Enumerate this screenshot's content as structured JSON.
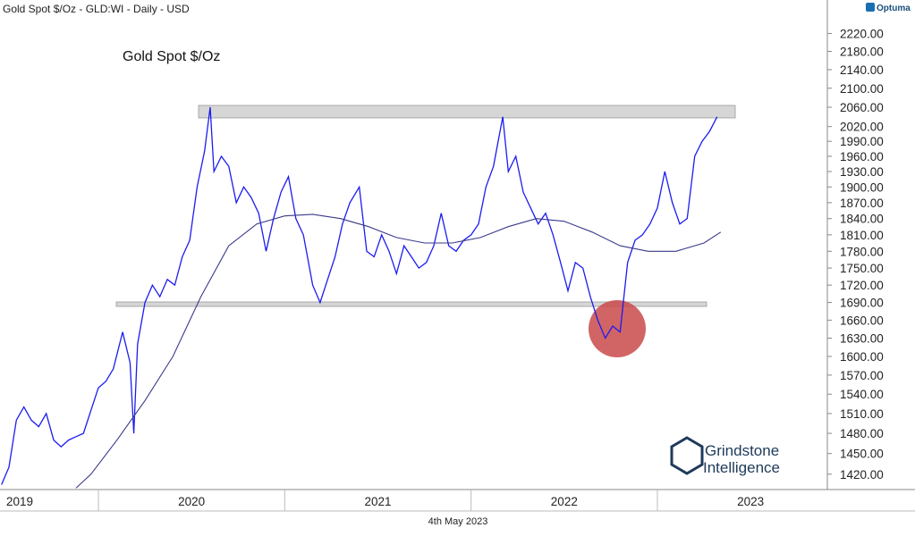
{
  "chart_data": {
    "type": "line",
    "title": "Gold Spot $/Oz - GLD:WI - Daily - USD",
    "annotation": "Gold Spot $/Oz",
    "date_label": "4th May 2023",
    "brand": "Optuma",
    "logo_lines": [
      "Grindstone",
      "Intelligence"
    ],
    "log_scale": true,
    "xlim": [
      2019.472,
      2023.912
    ],
    "ylim": [
      1398,
      2280
    ],
    "xticks": [
      2019,
      2020,
      2021,
      2022,
      2023
    ],
    "yticks": [
      {
        "value": 2220,
        "label": "2220.00"
      },
      {
        "value": 2180,
        "label": "2180.00"
      },
      {
        "value": 2140,
        "label": "2140.00"
      },
      {
        "value": 2100,
        "label": "2100.00"
      },
      {
        "value": 2060,
        "label": "2060.00"
      },
      {
        "value": 2020,
        "label": "2020.00"
      },
      {
        "value": 1990,
        "label": "1990.00"
      },
      {
        "value": 1960,
        "label": "1960.00"
      },
      {
        "value": 1930,
        "label": "1930.00"
      },
      {
        "value": 1900,
        "label": "1900.00"
      },
      {
        "value": 1870,
        "label": "1870.00"
      },
      {
        "value": 1840,
        "label": "1840.00"
      },
      {
        "value": 1810,
        "label": "1810.00"
      },
      {
        "value": 1780,
        "label": "1780.00"
      },
      {
        "value": 1750,
        "label": "1750.00"
      },
      {
        "value": 1720,
        "label": "1720.00"
      },
      {
        "value": 1690,
        "label": "1690.00"
      },
      {
        "value": 1660,
        "label": "1660.00"
      },
      {
        "value": 1630,
        "label": "1630.00"
      },
      {
        "value": 1600,
        "label": "1600.00"
      },
      {
        "value": 1570,
        "label": "1570.00"
      },
      {
        "value": 1540,
        "label": "1540.00"
      },
      {
        "value": 1510,
        "label": "1510.00"
      },
      {
        "value": 1480,
        "label": "1480.00"
      },
      {
        "value": 1450,
        "label": "1450.00"
      },
      {
        "value": 1420,
        "label": "1420.00"
      }
    ],
    "series": [
      {
        "color": "#1c1cf0",
        "x": [
          2019.48,
          2019.52,
          2019.56,
          2019.6,
          2019.64,
          2019.68,
          2019.72,
          2019.76,
          2019.8,
          2019.84,
          2019.88,
          2019.92,
          2019.96,
          2020.0,
          2020.04,
          2020.08,
          2020.13,
          2020.17,
          2020.19,
          2020.21,
          2020.25,
          2020.29,
          2020.33,
          2020.37,
          2020.41,
          2020.45,
          2020.49,
          2020.53,
          2020.57,
          2020.6,
          2020.62,
          2020.66,
          2020.7,
          2020.74,
          2020.78,
          2020.82,
          2020.86,
          2020.9,
          2020.94,
          2020.98,
          2021.02,
          2021.06,
          2021.1,
          2021.15,
          2021.19,
          2021.23,
          2021.27,
          2021.31,
          2021.35,
          2021.4,
          2021.44,
          2021.48,
          2021.52,
          2021.56,
          2021.6,
          2021.64,
          2021.68,
          2021.72,
          2021.76,
          2021.8,
          2021.84,
          2021.88,
          2021.92,
          2021.96,
          2022.0,
          2022.04,
          2022.08,
          2022.12,
          2022.17,
          2022.2,
          2022.24,
          2022.28,
          2022.32,
          2022.36,
          2022.4,
          2022.44,
          2022.48,
          2022.52,
          2022.56,
          2022.6,
          2022.64,
          2022.68,
          2022.72,
          2022.76,
          2022.8,
          2022.84,
          2022.88,
          2022.92,
          2022.96,
          2023.0,
          2023.04,
          2023.08,
          2023.12,
          2023.16,
          2023.2,
          2023.24,
          2023.28,
          2023.32
        ],
        "values": [
          1405,
          1430,
          1500,
          1520,
          1500,
          1490,
          1510,
          1470,
          1460,
          1470,
          1475,
          1480,
          1515,
          1550,
          1560,
          1580,
          1640,
          1590,
          1480,
          1620,
          1690,
          1720,
          1700,
          1730,
          1720,
          1770,
          1800,
          1900,
          1970,
          2060,
          1930,
          1960,
          1940,
          1870,
          1900,
          1880,
          1850,
          1780,
          1840,
          1890,
          1920,
          1840,
          1810,
          1720,
          1690,
          1730,
          1770,
          1830,
          1870,
          1900,
          1780,
          1770,
          1810,
          1780,
          1740,
          1790,
          1770,
          1750,
          1760,
          1790,
          1850,
          1790,
          1780,
          1800,
          1810,
          1830,
          1900,
          1940,
          2040,
          1930,
          1960,
          1890,
          1860,
          1830,
          1850,
          1810,
          1760,
          1710,
          1760,
          1750,
          1700,
          1660,
          1630,
          1650,
          1640,
          1760,
          1800,
          1810,
          1830,
          1860,
          1930,
          1870,
          1830,
          1840,
          1960,
          1990,
          2010,
          2040
        ]
      },
      {
        "color": "#3a3a8c",
        "x": [
          2019.88,
          2019.96,
          2020.1,
          2020.25,
          2020.4,
          2020.55,
          2020.7,
          2020.85,
          2021.0,
          2021.15,
          2021.3,
          2021.45,
          2021.6,
          2021.75,
          2021.9,
          2022.05,
          2022.2,
          2022.35,
          2022.5,
          2022.65,
          2022.8,
          2022.95,
          2023.1,
          2023.25,
          2023.34
        ],
        "values": [
          1400,
          1420,
          1470,
          1530,
          1600,
          1700,
          1790,
          1830,
          1845,
          1848,
          1840,
          1825,
          1805,
          1795,
          1795,
          1805,
          1825,
          1840,
          1835,
          1815,
          1790,
          1780,
          1780,
          1795,
          1815
        ]
      }
    ]
  }
}
